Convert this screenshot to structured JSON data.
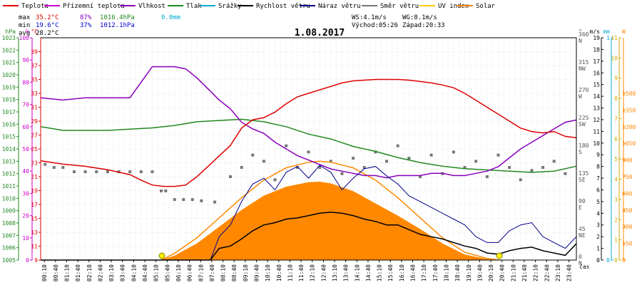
{
  "legend": [
    {
      "label": "Teplota",
      "color": "#dd0000"
    },
    {
      "label": "Přízemní teplota",
      "color": "#cc00cc"
    },
    {
      "label": "Vlhkost",
      "color": "#8800bb"
    },
    {
      "label": "Tlak",
      "color": "#228822"
    },
    {
      "label": "Srážky",
      "color": "#00aacc"
    },
    {
      "label": "Rychlost větru",
      "color": "#000000"
    },
    {
      "label": "Náraz větru",
      "color": "#000088"
    },
    {
      "label": "Směr větru",
      "color": "#777777"
    },
    {
      "label": "UV index",
      "color": "#ffcc00"
    },
    {
      "label": "Solar",
      "color": "#ff8800"
    }
  ],
  "stats": {
    "max_label": "max",
    "max_temp": "35.2°C",
    "max_hum": "87%",
    "max_press": "1016.4hPa",
    "max_rain": "0.0mm",
    "min_label": "min",
    "min_temp": "19.6°C",
    "min_hum": "37%",
    "min_press": "1012.1hPa",
    "avg_label": "avg",
    "avg_temp": "28.2°C",
    "ws": "WS:4.1m/s",
    "wg": "WG:8.1m/s",
    "sunrise": "Východ:05:26",
    "sunset": "Západ:20:33"
  },
  "title": "1.08.2017",
  "colors": {
    "temp": "#dd0000",
    "hum": "#8800bb",
    "press": "#228822",
    "rain": "#00aacc",
    "wind": "#000000",
    "gust": "#000088",
    "dir": "#777777",
    "uv": "#ffcc00",
    "solar": "#ff8800",
    "grid": "#cccccc"
  },
  "chart_data": {
    "type": "line",
    "title": "1.08.2017",
    "xlabel": "čas",
    "x_ticks": [
      "00:10",
      "00:40",
      "01:10",
      "01:40",
      "02:10",
      "02:40",
      "03:10",
      "03:40",
      "04:10",
      "04:40",
      "05:10",
      "05:40",
      "06:10",
      "06:40",
      "07:10",
      "07:40",
      "08:10",
      "08:40",
      "09:10",
      "09:40",
      "10:10",
      "10:40",
      "11:10",
      "11:40",
      "12:10",
      "12:40",
      "13:10",
      "13:40",
      "14:10",
      "14:40",
      "15:10",
      "15:40",
      "16:10",
      "16:40",
      "17:10",
      "17:40",
      "18:10",
      "18:40",
      "19:10",
      "19:40",
      "20:10",
      "20:40",
      "21:10",
      "21:40",
      "22:10",
      "22:40",
      "23:10",
      "23:40"
    ],
    "axes": {
      "pressure": {
        "label": "hPa",
        "range": [
          1005,
          1023
        ],
        "ticks": [
          1005,
          1006,
          1007,
          1008,
          1009,
          1010,
          1011,
          1012,
          1013,
          1014,
          1015,
          1016,
          1017,
          1018,
          1019,
          1020,
          1021,
          1022,
          1023
        ]
      },
      "humidity": {
        "label": "%",
        "range": [
          0,
          100
        ],
        "ticks": [
          0,
          10,
          20,
          30,
          40,
          50,
          60,
          70,
          80,
          90,
          100
        ]
      },
      "temperature": {
        "label": "°C",
        "range": [
          9,
          41
        ],
        "ticks": [
          9,
          11,
          13,
          15,
          17,
          19,
          21,
          23,
          25,
          27,
          29,
          31,
          33,
          35,
          37,
          39
        ]
      },
      "wind_dir": {
        "label": "°",
        "ticks": [
          {
            "v": 0,
            "l": "0 N"
          },
          {
            "v": 45,
            "l": "45 NE"
          },
          {
            "v": 90,
            "l": "90 E"
          },
          {
            "v": 135,
            "l": "135 SE"
          },
          {
            "v": 180,
            "l": "180 S"
          },
          {
            "v": 225,
            "l": "225 SW"
          },
          {
            "v": 270,
            "l": "270 W"
          },
          {
            "v": 315,
            "l": "315 NW"
          },
          {
            "v": 360,
            "l": "360 N"
          }
        ]
      },
      "wind_speed": {
        "label": "m/s",
        "range": [
          0,
          19
        ],
        "ticks": [
          0,
          1,
          2,
          3,
          4,
          5,
          6,
          7,
          8,
          9,
          10,
          11,
          12,
          13,
          14,
          15,
          16,
          17,
          18,
          19
        ]
      },
      "rain": {
        "label": "mm",
        "range": [
          0,
          1
        ],
        "ticks": [
          0,
          1
        ]
      },
      "uv": {
        "range": [
          0,
          11
        ],
        "ticks": [
          0,
          1,
          2,
          3,
          4,
          5,
          6,
          7,
          8,
          9,
          10,
          11
        ]
      },
      "solar": {
        "label": "W",
        "range": [
          0,
          2000
        ],
        "ticks": [
          0,
          150,
          300,
          450,
          600,
          750,
          900,
          1050,
          1200,
          1350,
          1500
        ]
      }
    },
    "series": [
      {
        "name": "Teplota",
        "axis": "temperature",
        "x": [
          0,
          1,
          2,
          3,
          4,
          4.5,
          5,
          5.5,
          6,
          6.5,
          7,
          7.5,
          8,
          8.5,
          9,
          9.5,
          10,
          10.5,
          11,
          11.5,
          12,
          12.5,
          13,
          13.5,
          14,
          14.5,
          15,
          15.5,
          16,
          16.5,
          17,
          17.5,
          18,
          18.5,
          19,
          19.5,
          20,
          20.5,
          21,
          21.5,
          22,
          22.5,
          23,
          23.5,
          24
        ],
        "values": [
          23.3,
          22.8,
          22.5,
          22.0,
          21.3,
          20.5,
          19.8,
          19.6,
          19.6,
          19.8,
          21.0,
          22.5,
          24.0,
          25.5,
          28.0,
          29.2,
          29.5,
          30.3,
          31.5,
          32.5,
          33.0,
          33.5,
          34.0,
          34.5,
          34.8,
          34.9,
          35.0,
          35.0,
          35.0,
          34.9,
          34.7,
          34.5,
          34.2,
          33.8,
          33.0,
          32.0,
          31.0,
          30.0,
          29.0,
          28.0,
          27.5,
          27.3,
          27.5,
          26.8,
          26.6
        ]
      },
      {
        "name": "Vlhkost",
        "axis": "humidity",
        "x": [
          0,
          1,
          2,
          3,
          4,
          4.5,
          5,
          5.5,
          6,
          6.5,
          7,
          7.5,
          8,
          8.5,
          9,
          9.5,
          10,
          10.5,
          11,
          11.5,
          12,
          12.5,
          13,
          13.5,
          14,
          14.5,
          15,
          15.5,
          16,
          16.5,
          17,
          17.5,
          18,
          18.5,
          19,
          19.5,
          20,
          20.5,
          21,
          21.5,
          22,
          22.5,
          23,
          23.5,
          24
        ],
        "values": [
          73,
          72,
          73,
          73,
          73,
          80,
          87,
          87,
          87,
          86,
          82,
          77,
          72,
          68,
          62,
          59,
          57,
          53,
          50,
          47,
          45,
          43,
          41,
          40,
          39,
          38,
          38,
          37,
          38,
          38,
          38,
          39,
          39,
          38,
          38,
          39,
          40,
          42,
          46,
          50,
          53,
          56,
          59,
          62,
          63
        ]
      },
      {
        "name": "Tlak",
        "axis": "pressure",
        "x": [
          0,
          1,
          2,
          3,
          4,
          5,
          6,
          7,
          8,
          9,
          10,
          11,
          12,
          13,
          14,
          15,
          16,
          17,
          18,
          19,
          20,
          21,
          22,
          23,
          24
        ],
        "values": [
          1015.8,
          1015.5,
          1015.5,
          1015.5,
          1015.6,
          1015.7,
          1015.9,
          1016.2,
          1016.3,
          1016.4,
          1016.2,
          1015.8,
          1015.2,
          1014.8,
          1014.2,
          1013.8,
          1013.3,
          1012.9,
          1012.6,
          1012.4,
          1012.3,
          1012.2,
          1012.1,
          1012.2,
          1012.6
        ]
      },
      {
        "name": "Solar",
        "axis": "solar",
        "x": [
          5.4,
          6,
          7,
          8,
          9,
          10,
          11,
          12,
          12.5,
          13,
          14,
          15,
          16,
          17,
          18,
          19,
          20,
          20.55
        ],
        "values": [
          0,
          60,
          200,
          380,
          560,
          720,
          830,
          880,
          890,
          880,
          830,
          720,
          560,
          380,
          200,
          70,
          15,
          0
        ]
      },
      {
        "name": "Solar (plocha)",
        "axis": "solar",
        "x": [
          5.4,
          6,
          7,
          8,
          9,
          10,
          11,
          12,
          12.5,
          13,
          14,
          15,
          16,
          17,
          18,
          19,
          20,
          20.55
        ],
        "values": [
          0,
          40,
          150,
          300,
          450,
          580,
          660,
          700,
          705,
          690,
          620,
          510,
          400,
          280,
          150,
          50,
          10,
          0
        ]
      },
      {
        "name": "Rychlost větru",
        "axis": "wind_speed",
        "x": [
          0,
          7.6,
          8,
          8.5,
          9,
          9.5,
          10,
          10.5,
          11,
          11.5,
          12,
          12.5,
          13,
          13.5,
          14,
          14.5,
          15,
          15.5,
          16,
          16.5,
          17,
          17.5,
          18,
          18.5,
          19,
          19.5,
          20,
          20.5,
          21,
          21.5,
          22,
          22.5,
          23,
          23.5,
          24
        ],
        "values": [
          0,
          0,
          1.0,
          1.2,
          1.8,
          2.5,
          3.0,
          3.2,
          3.5,
          3.6,
          3.8,
          4.0,
          4.1,
          4.0,
          3.8,
          3.5,
          3.3,
          3.0,
          3.0,
          2.6,
          2.2,
          2.0,
          1.8,
          1.5,
          1.2,
          1.0,
          0.6,
          0.5,
          0.8,
          1.0,
          1.1,
          0.8,
          0.6,
          0.4,
          1.4
        ]
      },
      {
        "name": "Náraz větru",
        "axis": "wind_speed",
        "x": [
          0,
          7.6,
          8,
          8.5,
          9,
          9.5,
          10,
          10.5,
          11,
          11.5,
          12,
          12.5,
          13,
          13.5,
          14,
          14.5,
          15,
          15.5,
          16,
          16.5,
          17,
          17.5,
          18,
          18.5,
          19,
          19.5,
          20,
          20.5,
          21,
          21.5,
          22,
          22.5,
          23,
          23.5,
          24
        ],
        "values": [
          0,
          0,
          2.0,
          3.0,
          5.0,
          6.5,
          7.0,
          6.0,
          7.5,
          8.0,
          7.0,
          8.1,
          7.5,
          6.0,
          7.0,
          7.8,
          8.0,
          7.2,
          6.5,
          5.5,
          5.0,
          4.5,
          4.0,
          3.5,
          3.0,
          2.0,
          1.5,
          1.5,
          2.5,
          3.0,
          3.2,
          2.0,
          1.5,
          1.0,
          2.0
        ]
      },
      {
        "name": "Směr větru",
        "axis": "wind_dir",
        "x": [
          0.2,
          0.6,
          1.0,
          1.5,
          2.0,
          2.5,
          3.0,
          3.5,
          4.0,
          4.5,
          5.0,
          5.4,
          5.6,
          6.0,
          6.4,
          6.8,
          7.2,
          7.8,
          8.5,
          9.0,
          9.5,
          10.0,
          10.5,
          11.0,
          11.5,
          12.0,
          12.5,
          13.0,
          13.5,
          14.0,
          14.5,
          15.0,
          15.5,
          16.0,
          16.5,
          17.0,
          17.5,
          18.0,
          18.5,
          19.0,
          19.5,
          20.0,
          20.5,
          21.0,
          21.5,
          22.0,
          22.5,
          23.0,
          23.5
        ],
        "values": [
          155,
          150,
          150,
          143,
          143,
          143,
          143,
          143,
          143,
          143,
          143,
          112,
          112,
          98,
          98,
          98,
          96,
          94,
          135,
          150,
          170,
          160,
          130,
          185,
          150,
          175,
          150,
          160,
          140,
          165,
          150,
          175,
          160,
          185,
          165,
          135,
          170,
          140,
          175,
          150,
          160,
          135,
          170,
          150,
          130,
          145,
          150,
          160,
          140
        ]
      }
    ]
  }
}
